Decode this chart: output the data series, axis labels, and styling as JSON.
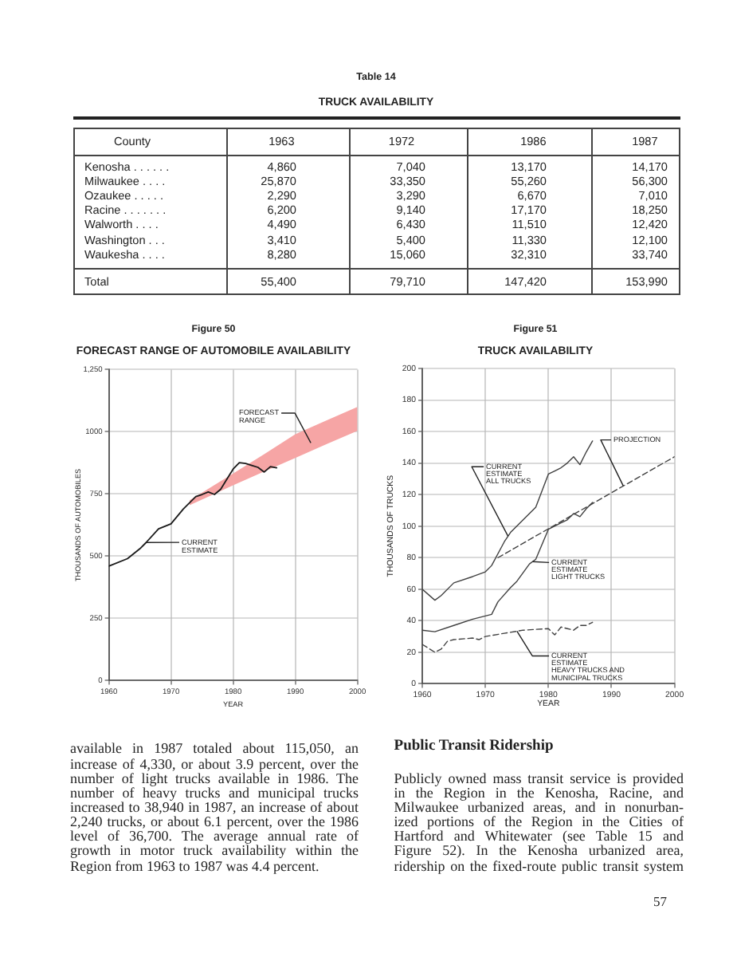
{
  "chart_data": [
    {
      "type": "other",
      "subtitle": "Table 14",
      "title": "TRUCK AVAILABILITY",
      "ylabel": "County",
      "categories": [
        "1963",
        "1972",
        "1986",
        "1987"
      ],
      "y_categories": [
        "Kenosha . . . . . .",
        "Milwaukee . . . .",
        "Ozaukee . . . . .",
        "Racine . . . . . . .",
        "Walworth . . . .",
        "Washington . . .",
        "Waukesha . . . .",
        "Total"
      ],
      "cell_labels": [
        [
          "4,860",
          "7,040",
          "13,170",
          "14,170"
        ],
        [
          "25,870",
          "33,350",
          "55,260",
          "56,300"
        ],
        [
          "2,290",
          "3,290",
          "6,670",
          "7,010"
        ],
        [
          "6,200",
          "9,140",
          "17,170",
          "18,250"
        ],
        [
          "4,490",
          "6,430",
          "11,510",
          "12,420"
        ],
        [
          "3,410",
          "5,400",
          "11,330",
          "12,100"
        ],
        [
          "8,280",
          "15,060",
          "32,310",
          "33,740"
        ],
        [
          "55,400",
          "79,710",
          "147,420",
          "153,990"
        ]
      ]
    },
    {
      "type": "line",
      "subtitle": "Figure 50",
      "title": "FORECAST RANGE OF AUTOMOBILE AVAILABILITY",
      "xlabel": "YEAR",
      "ylabel": "THOUSANDS OF AUTOMOBILES",
      "xlim": [
        1960,
        2000
      ],
      "xticks": [
        1960,
        1970,
        1980,
        1990,
        2000
      ],
      "ylim": [
        0,
        1250
      ],
      "yticks": [
        0,
        250,
        500,
        750,
        1000,
        {
          "value": 1250,
          "label": "1,250"
        }
      ],
      "grid": true,
      "annotations": [
        {
          "text": "FORECAST\nRANGE",
          "x": 1992.5,
          "y": 955
        }
      ],
      "series": [
        {
          "name": "CURRENT\nESTIMATE",
          "color": "#1a1a1a",
          "x": [
            1960,
            1963,
            1965,
            1966,
            1968,
            1970,
            1972,
            1974,
            1975,
            1976,
            1977,
            1978,
            1979,
            1980,
            1981,
            1982,
            1983,
            1984,
            1985,
            1986,
            1987
          ],
          "values": [
            460,
            490,
            530,
            555,
            610,
            630,
            690,
            740,
            748,
            758,
            748,
            769,
            810,
            850,
            876,
            873,
            865,
            857,
            838,
            860,
            855
          ]
        },
        {
          "type": "area",
          "color": "#f6a5a5",
          "x": [
            1973,
            1980,
            1985,
            1990,
            1995,
            2000
          ],
          "values": [
            null,
            null,
            null,
            null,
            null,
            null
          ],
          "lower": [
            705,
            785,
            840,
            895,
            950,
            1004
          ],
          "upper": [
            725,
            832,
            910,
            990,
            1045,
            1100
          ]
        }
      ]
    },
    {
      "type": "line",
      "subtitle": "Figure 51",
      "title": "TRUCK AVAILABILITY",
      "xlabel": "YEAR",
      "ylabel": "THOUSANDS OF TRUCKS",
      "xlim": [
        1960,
        2000
      ],
      "xticks": [
        1960,
        1970,
        1980,
        1990,
        2000
      ],
      "ylim": [
        0,
        200
      ],
      "yticks": [
        0,
        20,
        40,
        60,
        80,
        100,
        120,
        140,
        160,
        180,
        200
      ],
      "grid": true,
      "series": [
        {
          "name": "CURRENT\nESTIMATE\nALL TRUCKS",
          "color": "#404040",
          "x": [
            1960,
            1962,
            1963,
            1965,
            1968,
            1970,
            1971,
            1973,
            1974,
            1978,
            1980,
            1981,
            1982,
            1983,
            1984,
            1985,
            1986,
            1987
          ],
          "values": [
            60,
            53,
            56,
            64,
            68,
            71,
            75,
            90,
            96,
            112,
            133,
            135,
            137,
            140,
            144,
            139,
            147,
            154
          ]
        },
        {
          "name": "CURRENT\nESTIMATE\nLIGHT TRUCKS",
          "color": "#404040",
          "x": [
            1960,
            1962,
            1965,
            1968,
            1971,
            1972,
            1974,
            1975,
            1977,
            1978,
            1980,
            1981,
            1982,
            1983,
            1984,
            1985,
            1986,
            1987
          ],
          "values": [
            34,
            33,
            37,
            41,
            44,
            52,
            61,
            65,
            76,
            79,
            98,
            100,
            102,
            104,
            108,
            106,
            111,
            115
          ]
        },
        {
          "name": "CURRENT\nESTIMATE\nHEAVY TRUCKS AND\nMUNICIPAL TRUCKS",
          "color": "#404040",
          "line_style": "dashed",
          "x": [
            1960,
            1962,
            1963,
            1964,
            1965,
            1968,
            1969,
            1970,
            1973,
            1976,
            1980,
            1981,
            1982,
            1983,
            1984,
            1985,
            1986,
            1987
          ],
          "values": [
            25,
            20,
            22,
            27,
            28,
            29,
            28,
            30,
            32,
            34,
            35,
            31,
            36,
            35,
            34,
            37,
            37,
            39
          ]
        },
        {
          "name": "PROJECTION",
          "color": "#404040",
          "line_style": "dashed",
          "x": [
            1972,
            2000
          ],
          "values": [
            80,
            144
          ]
        }
      ]
    },
    {
      "type": "other",
      "annotations": [
        "available in 1987 totaled about 115,050, an\nincrease of 4,330, or about 3.9 percent, over the\nnumber of light trucks available in 1986. The\nnumber of heavy trucks and municipal trucks\nincreased to 38,940 in 1987, an increase of about\n2,240 trucks, or about 6.1 percent, over the 1986\nlevel of 36,700. The average annual rate of\ngrowth in motor truck availability within the\nRegion from 1963 to 1987 was 4.4 percent."
      ]
    },
    {
      "type": "other",
      "title": "Public Transit Ridership",
      "annotations": [
        "Publicly owned mass transit service is provided\nin the Region in the Kenosha, Racine, and\nMilwaukee urbanized areas, and in nonurban-\nized portions of the Region in the Cities of\nHartford and Whitewater (see Table 15 and\nFigure 52). In the Kenosha urbanized area,\nridership on the fixed-route public transit system",
        "57"
      ]
    }
  ]
}
